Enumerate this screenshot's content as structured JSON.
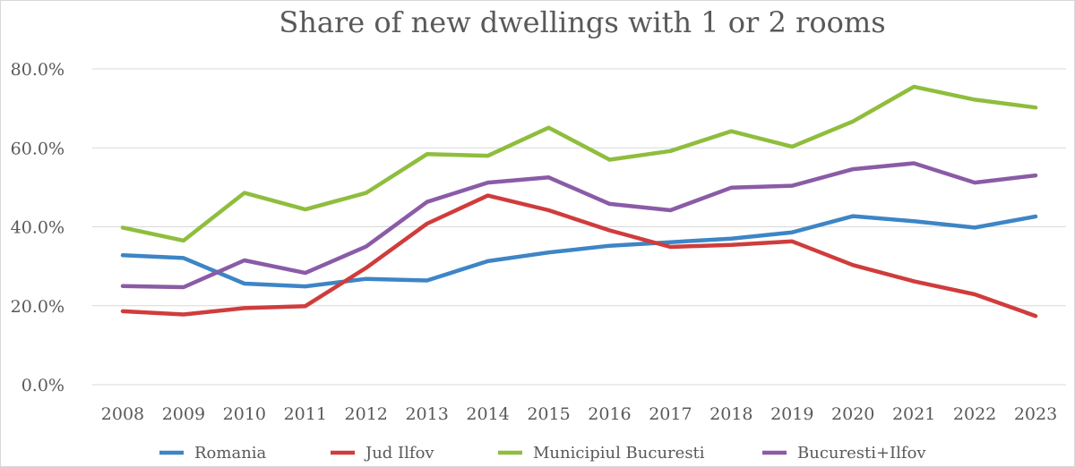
{
  "chart_data": {
    "type": "line",
    "title": "Share of new dwellings with 1 or 2 rooms",
    "xlabel": "",
    "ylabel": "",
    "categories": [
      "2008",
      "2009",
      "2010",
      "2011",
      "2012",
      "2013",
      "2014",
      "2015",
      "2016",
      "2017",
      "2018",
      "2019",
      "2020",
      "2021",
      "2022",
      "2023"
    ],
    "ylim": [
      0,
      80
    ],
    "yticks": [
      0,
      20,
      40,
      60,
      80
    ],
    "ytick_labels": [
      "0.0%",
      "20.0%",
      "40.0%",
      "60.0%",
      "80.0%"
    ],
    "grid": true,
    "legend_position": "bottom",
    "series": [
      {
        "name": "Romania",
        "color": "#3d85c6",
        "values": [
          32.8,
          32.1,
          25.6,
          24.9,
          26.8,
          26.4,
          31.3,
          33.5,
          35.2,
          36.1,
          37.0,
          38.6,
          42.7,
          41.4,
          39.8,
          42.6
        ]
      },
      {
        "name": "Jud Ilfov",
        "color": "#d03c3c",
        "values": [
          18.6,
          17.8,
          19.4,
          19.9,
          29.6,
          40.8,
          47.9,
          44.2,
          39.1,
          34.9,
          35.4,
          36.3,
          30.3,
          26.2,
          22.9,
          17.4
        ]
      },
      {
        "name": "Municipiul Bucuresti",
        "color": "#8fbd3d",
        "values": [
          39.8,
          36.5,
          48.6,
          44.4,
          48.6,
          58.4,
          58.0,
          65.1,
          57.0,
          59.2,
          64.2,
          60.3,
          66.7,
          75.5,
          72.2,
          70.2
        ]
      },
      {
        "name": "Bucuresti+Ilfov",
        "color": "#8a5ba6",
        "values": [
          25.0,
          24.7,
          31.5,
          28.3,
          35.0,
          46.3,
          51.2,
          52.5,
          45.8,
          44.2,
          49.9,
          50.4,
          54.6,
          56.1,
          51.2,
          53.0
        ]
      }
    ]
  }
}
